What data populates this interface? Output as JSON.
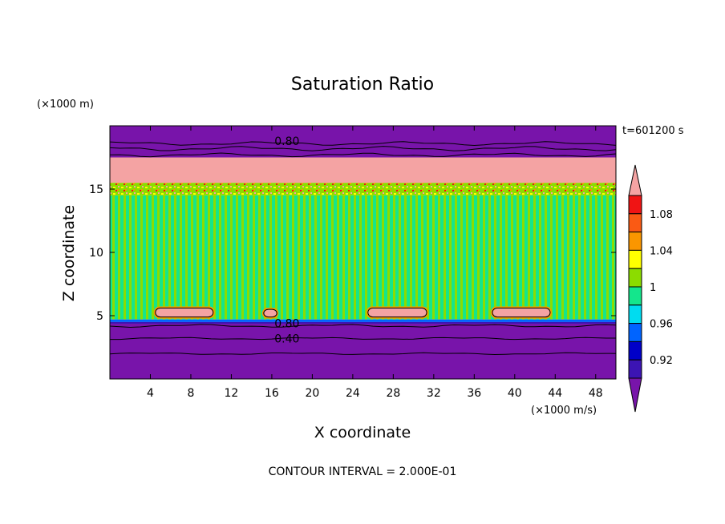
{
  "chart_data": {
    "type": "heatmap",
    "title": "Saturation Ratio",
    "xlabel": "X coordinate",
    "ylabel": "Z coordinate",
    "x_units": "(×1000 m/s)",
    "y_units": "(×1000 m)",
    "time_label": "t=601200 s",
    "footer": "CONTOUR INTERVAL = 2.000E-01",
    "xlim": [
      0,
      50
    ],
    "ylim": [
      0,
      20
    ],
    "x_ticks": [
      4,
      8,
      12,
      16,
      20,
      24,
      28,
      32,
      36,
      40,
      44,
      48
    ],
    "y_ticks": [
      5,
      10,
      15
    ],
    "colorbar": {
      "labels": [
        "1.08",
        "1.04",
        "1",
        "0.96",
        "0.92"
      ],
      "bands": [
        {
          "range": "> 1.10",
          "color": "#f4a3a3"
        },
        {
          "range": "1.08–1.10",
          "color": "#f01414"
        },
        {
          "range": "1.06–1.08",
          "color": "#fa5a14"
        },
        {
          "range": "1.04–1.06",
          "color": "#fa9600"
        },
        {
          "range": "1.02–1.04",
          "color": "#ffff00"
        },
        {
          "range": "1.00–1.02",
          "color": "#8cdc00"
        },
        {
          "range": "0.98–1.00",
          "color": "#14e68c"
        },
        {
          "range": "0.96–0.98",
          "color": "#00dcf0"
        },
        {
          "range": "0.94–0.96",
          "color": "#0064ff"
        },
        {
          "range": "0.92–0.94",
          "color": "#0000c8"
        },
        {
          "range": "0.90–0.92",
          "color": "#3c14b4"
        },
        {
          "range": "< 0.90",
          "color": "#7814aa"
        }
      ]
    },
    "contour_labels": [
      {
        "text": "0.80",
        "x": 17.5,
        "z": 18.8
      },
      {
        "text": "0.80",
        "x": 17.5,
        "z": 4.4
      },
      {
        "text": "0.40",
        "x": 17.5,
        "z": 3.2
      }
    ],
    "regions": [
      {
        "level": "< 0.90",
        "z_range": [
          0,
          4.5
        ],
        "note": "lower dry layer"
      },
      {
        "level": "0.98–1.02",
        "z_range": [
          4.7,
          14.5
        ],
        "note": "cloud layer, alternating green bands"
      },
      {
        "level": "1.02–1.10",
        "z_range": [
          14.5,
          15.5
        ],
        "note": "mixed yellow/orange/red transition"
      },
      {
        "level": "> 1.10",
        "z_range": [
          15.5,
          17.5
        ],
        "note": "upper supersaturated layer"
      },
      {
        "level": "< 0.90",
        "z_range": [
          17.5,
          20
        ],
        "note": "upper dry layer"
      }
    ],
    "supersaturated_lenses": [
      {
        "x_range": [
          4.5,
          10.2
        ],
        "z_range": [
          4.9,
          5.6
        ]
      },
      {
        "x_range": [
          15.2,
          16.5
        ],
        "z_range": [
          4.9,
          5.5
        ]
      },
      {
        "x_range": [
          25.5,
          31.3
        ],
        "z_range": [
          4.9,
          5.6
        ]
      },
      {
        "x_range": [
          37.8,
          43.5
        ],
        "z_range": [
          4.9,
          5.6
        ]
      }
    ],
    "grid": false,
    "legend_position": "right"
  }
}
